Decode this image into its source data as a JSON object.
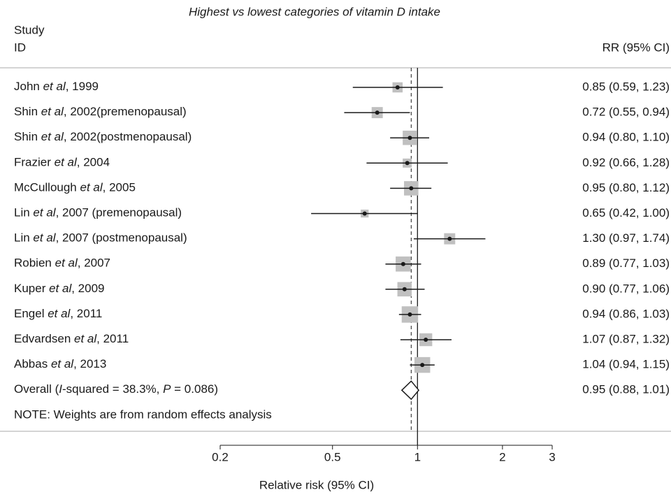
{
  "chart_data": {
    "type": "forest",
    "title": "Highest vs lowest categories of vitamin D intake",
    "header_left": [
      "Study",
      "ID"
    ],
    "header_right": "RR (95% CI)",
    "x_label": "Relative risk (95% CI)",
    "note": "NOTE: Weights are from random effects analysis",
    "log_x": true,
    "xlim": [
      0.2,
      3
    ],
    "xticks": [
      0.2,
      0.5,
      1,
      2,
      3
    ],
    "reference": 1,
    "studies": [
      [
        "John ",
        "et al",
        ", 1999"
      ],
      [
        "Shin ",
        "et al",
        ", 2002(premenopausal)"
      ],
      [
        "Shin ",
        "et al",
        ", 2002(postmenopausal)"
      ],
      [
        "Frazier ",
        "et al",
        ", 2004"
      ],
      [
        "McCullough ",
        "et al",
        ", 2005"
      ],
      [
        "Lin ",
        "et al",
        ", 2007 (premenopausal)"
      ],
      [
        "Lin ",
        "et al",
        ", 2007 (postmenopausal)"
      ],
      [
        "Robien ",
        "et al",
        ", 2007"
      ],
      [
        "Kuper ",
        "et al",
        ", 2009"
      ],
      [
        "Engel ",
        "et al",
        ", 2011"
      ],
      [
        "Edvardsen ",
        "et al",
        ", 2011"
      ],
      [
        "Abbas ",
        "et al",
        ", 2013"
      ]
    ],
    "values": [
      0.85,
      0.72,
      0.94,
      0.92,
      0.95,
      0.65,
      1.3,
      0.89,
      0.9,
      0.94,
      1.07,
      1.04
    ],
    "lower": [
      0.59,
      0.55,
      0.8,
      0.66,
      0.8,
      0.42,
      0.97,
      0.77,
      0.77,
      0.86,
      0.87,
      0.94
    ],
    "upper": [
      1.23,
      0.94,
      1.1,
      1.28,
      1.12,
      1.0,
      1.74,
      1.03,
      1.06,
      1.03,
      1.32,
      1.15
    ],
    "weights": [
      5,
      6,
      10,
      4,
      10,
      3,
      6,
      11,
      10,
      13,
      8,
      12
    ],
    "value_labels": [
      "0.85 (0.59, 1.23)",
      "0.72 (0.55, 0.94)",
      "0.94 (0.80, 1.10)",
      "0.92 (0.66, 1.28)",
      "0.95 (0.80, 1.12)",
      "0.65 (0.42, 1.00)",
      "1.30 (0.97, 1.74)",
      "0.89 (0.77, 1.03)",
      "0.90 (0.77, 1.06)",
      "0.94 (0.86, 1.03)",
      "1.07 (0.87, 1.32)",
      "1.04 (0.94, 1.15)"
    ],
    "overall": {
      "label": [
        "Overall (",
        "I",
        "-squared = 38.3%, ",
        "P",
        " = 0.086)"
      ],
      "value": 0.95,
      "lower": 0.88,
      "upper": 1.01,
      "value_label": "0.95 (0.88, 1.01)"
    },
    "box_color": "#c0c0c0",
    "line_color": "#1a1a1a"
  }
}
